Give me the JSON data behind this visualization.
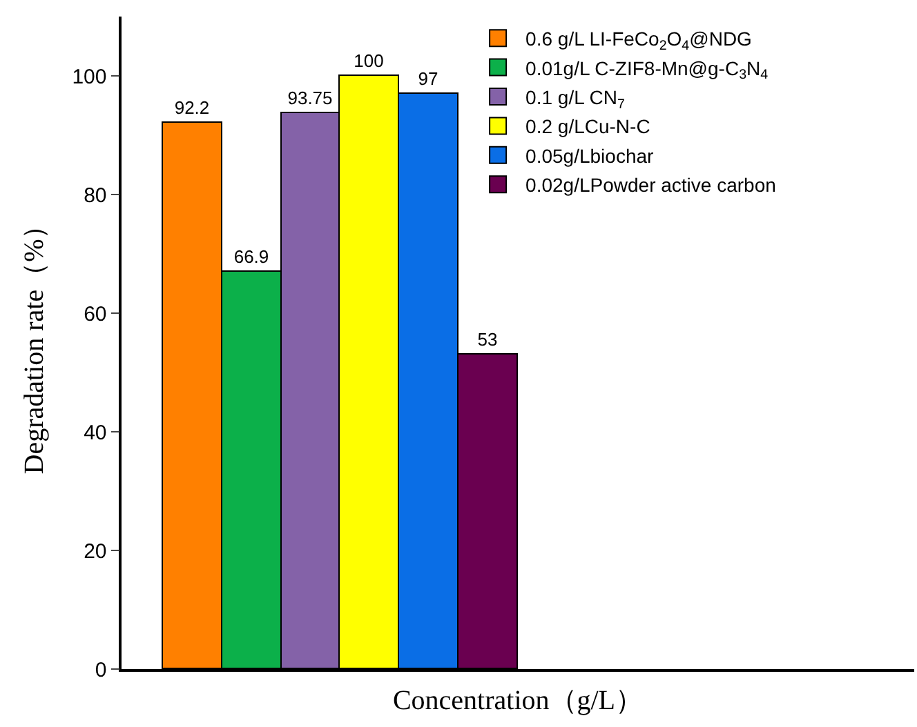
{
  "chart_data": {
    "type": "bar",
    "xlabel": "Concentration（g/L）",
    "ylabel": "Degradation rate（%）",
    "categories": [
      null
    ],
    "series": [
      {
        "name": "0.6 g/L LI-FeCo$_{2}$O$_{4}$@NDG",
        "color": "#ff8000",
        "values": [
          92.2
        ]
      },
      {
        "name": "0.01g/L C-ZIF8-Mn@g-C$_{3}$N$_{4}$",
        "color": "#0cb04a",
        "values": [
          66.9
        ]
      },
      {
        "name": "0.1 g/L CN$_{7}$",
        "color": "#8462a8",
        "values": [
          93.75
        ]
      },
      {
        "name": "0.2 g/LCu-N-C",
        "color": "#ffff00",
        "values": [
          100
        ]
      },
      {
        "name": "0.05g/Lbiochar",
        "color": "#0a6ee6",
        "values": [
          97
        ]
      },
      {
        "name": "0.02g/LPowder active carbon",
        "color": "#6a0050",
        "values": [
          53
        ]
      }
    ],
    "ylim": [
      0,
      110
    ],
    "yticks": [
      0,
      20,
      40,
      60,
      80,
      100
    ],
    "grid": false,
    "legend": "top right",
    "data_labels": true,
    "tick_labels": "y"
  }
}
